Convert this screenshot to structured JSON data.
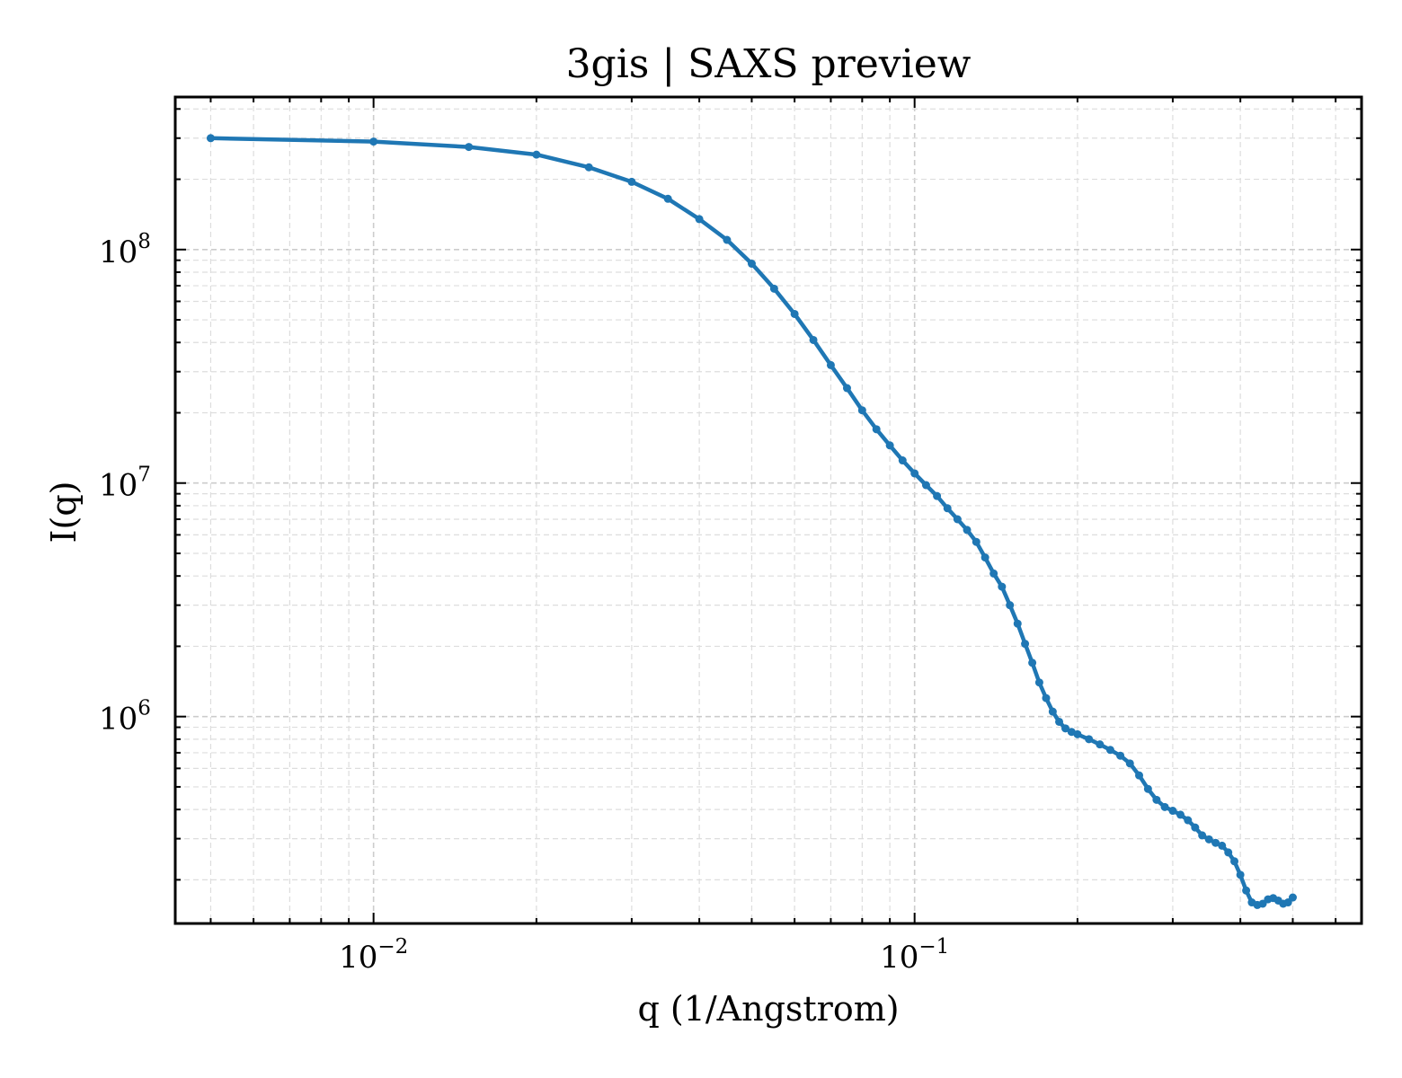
{
  "chart_data": {
    "type": "line",
    "title": "3gis | SAXS preview",
    "xlabel": "q (1/Angstrom)",
    "ylabel": "I(q)",
    "xscale": "log",
    "yscale": "log",
    "xlim": [
      0.0043,
      0.67
    ],
    "ylim": [
      130000,
      450000000
    ],
    "grid": true,
    "legend": "none",
    "x_ticks": [
      {
        "value": 0.01,
        "base": "10",
        "exp": "−2"
      },
      {
        "value": 0.1,
        "base": "10",
        "exp": "−1"
      }
    ],
    "y_ticks": [
      {
        "value": 1000000,
        "base": "10",
        "exp": "6"
      },
      {
        "value": 10000000,
        "base": "10",
        "exp": "7"
      },
      {
        "value": 100000000,
        "base": "10",
        "exp": "8"
      }
    ],
    "line_color": "#1f77b4",
    "series": [
      {
        "x": [
          0.005,
          0.01,
          0.015,
          0.02,
          0.025,
          0.03,
          0.035,
          0.04,
          0.045,
          0.05,
          0.055,
          0.06,
          0.065,
          0.07,
          0.075,
          0.08,
          0.085,
          0.09,
          0.095,
          0.1,
          0.105,
          0.11,
          0.115,
          0.12,
          0.125,
          0.13,
          0.135,
          0.14,
          0.145,
          0.15,
          0.155,
          0.16,
          0.165,
          0.17,
          0.175,
          0.18,
          0.185,
          0.19,
          0.195,
          0.2,
          0.21,
          0.22,
          0.23,
          0.24,
          0.25,
          0.26,
          0.27,
          0.28,
          0.29,
          0.3,
          0.31,
          0.32,
          0.33,
          0.34,
          0.35,
          0.36,
          0.37,
          0.38,
          0.39,
          0.4,
          0.41,
          0.42,
          0.43,
          0.44,
          0.45,
          0.46,
          0.47,
          0.48,
          0.49,
          0.5
        ],
        "y": [
          300000000,
          290000000,
          275000000,
          255000000,
          225000000,
          195000000,
          165000000,
          135000000,
          110000000,
          87000000,
          68000000,
          53000000,
          41000000,
          32000000,
          25500000,
          20500000,
          17000000,
          14500000,
          12500000,
          11000000,
          9800000,
          8800000,
          7800000,
          7000000,
          6300000,
          5600000,
          4800000,
          4100000,
          3600000,
          3000000,
          2500000,
          2050000,
          1700000,
          1400000,
          1200000,
          1050000,
          950000,
          890000,
          860000,
          840000,
          800000,
          760000,
          720000,
          680000,
          630000,
          560000,
          490000,
          440000,
          410000,
          395000,
          380000,
          360000,
          335000,
          310000,
          298000,
          288000,
          280000,
          262000,
          240000,
          210000,
          180000,
          160000,
          156000,
          158000,
          165000,
          167000,
          163000,
          158000,
          160000,
          168000
        ]
      }
    ]
  }
}
